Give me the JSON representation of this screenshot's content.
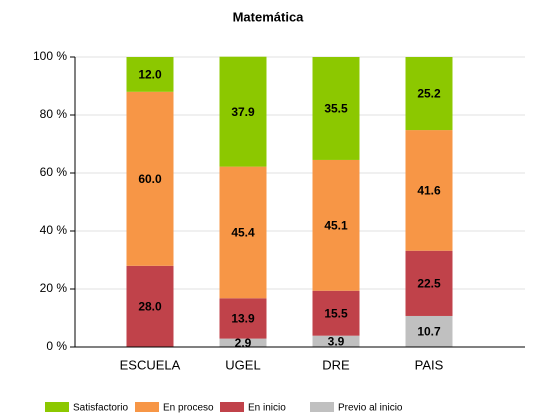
{
  "chart_data": {
    "type": "stacked_bar",
    "title": "Matemática",
    "categories": [
      "ESCUELA",
      "UGEL",
      "DRE",
      "PAIS"
    ],
    "series": [
      {
        "name": "Previo al inicio",
        "color": "#c0c0c0",
        "values": [
          null,
          2.9,
          3.9,
          10.7
        ],
        "value_labels": [
          null,
          "2.9",
          "3.9",
          "10.7"
        ]
      },
      {
        "name": "En inicio",
        "color": "#c0424a",
        "values": [
          28,
          13.9,
          15.5,
          22.5
        ],
        "value_labels": [
          "28.0",
          "13.9",
          "15.5",
          "22.5"
        ]
      },
      {
        "name": "En proceso",
        "color": "#f79646",
        "values": [
          60,
          45.4,
          45.1,
          41.6
        ],
        "value_labels": [
          "60.0",
          "45.4",
          "45.1",
          "41.6"
        ]
      },
      {
        "name": "Satisfactorio",
        "color": "#8cc800",
        "values": [
          12,
          37.9,
          35.5,
          25.2
        ],
        "value_labels": [
          "12.0",
          "37.9",
          "35.5",
          "25.2"
        ]
      }
    ],
    "ylim": [
      0,
      100
    ],
    "yticks": [
      {
        "value": 0,
        "label": "0 %"
      },
      {
        "value": 20,
        "label": "20 %"
      },
      {
        "value": 40,
        "label": "40 %"
      },
      {
        "value": 60,
        "label": "60 %"
      },
      {
        "value": 80,
        "label": "80 %"
      },
      {
        "value": 100,
        "label": "100 %"
      }
    ],
    "grid": true
  }
}
